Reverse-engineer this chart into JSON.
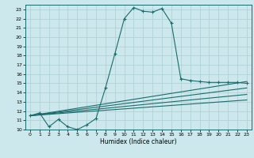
{
  "xlabel": "Humidex (Indice chaleur)",
  "bg_color": "#cce8ec",
  "line_color": "#1a6b6b",
  "grid_color": "#aacfd5",
  "xlim": [
    -0.5,
    23.5
  ],
  "ylim": [
    10,
    23.5
  ],
  "yticks": [
    10,
    11,
    12,
    13,
    14,
    15,
    16,
    17,
    18,
    19,
    20,
    21,
    22,
    23
  ],
  "xticks": [
    0,
    1,
    2,
    3,
    4,
    5,
    6,
    7,
    8,
    9,
    10,
    11,
    12,
    13,
    14,
    15,
    16,
    17,
    18,
    19,
    20,
    21,
    22,
    23
  ],
  "main_curve_x": [
    0,
    1,
    2,
    3,
    4,
    5,
    6,
    7,
    8,
    9,
    10,
    11,
    12,
    13,
    14,
    15,
    16,
    17,
    18,
    19,
    20,
    21,
    22,
    23
  ],
  "main_curve_y": [
    11.5,
    11.8,
    10.3,
    11.1,
    10.3,
    10.0,
    10.5,
    11.2,
    14.5,
    18.2,
    22.0,
    23.2,
    22.8,
    22.7,
    23.1,
    21.5,
    15.5,
    15.3,
    15.2,
    15.1,
    15.1,
    15.1,
    15.1,
    15.0
  ],
  "line1_x": [
    0,
    23
  ],
  "line1_y": [
    11.5,
    15.2
  ],
  "line2_x": [
    0,
    23
  ],
  "line2_y": [
    11.5,
    14.5
  ],
  "line3_x": [
    0,
    23
  ],
  "line3_y": [
    11.5,
    13.8
  ],
  "line4_x": [
    0,
    23
  ],
  "line4_y": [
    11.5,
    13.2
  ]
}
